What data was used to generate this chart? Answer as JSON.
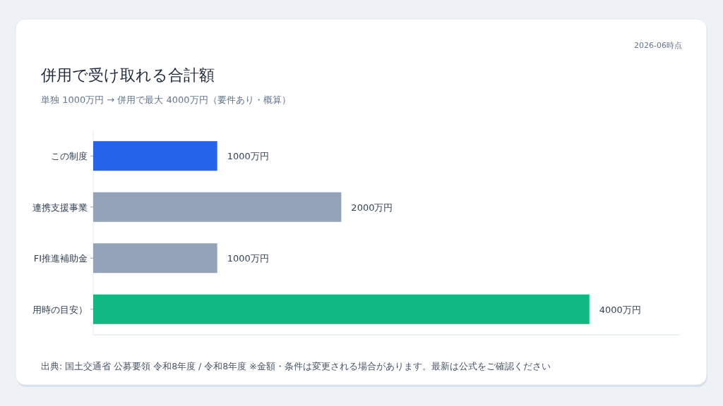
{
  "chart_data": {
    "type": "bar",
    "orientation": "horizontal",
    "title": "併用で受け取れる合計額",
    "subtitle": "単独 1000万円 → 併用で最大 4000万円（要件あり・概算）",
    "categories": [
      "この制度",
      "連携支援事業",
      "FI推進補助金",
      "用時の目安）"
    ],
    "values": [
      1000,
      2000,
      1000,
      4000
    ],
    "colors": [
      "#2563eb",
      "#94a3b8",
      "#94a3b8",
      "#10b981"
    ],
    "value_labels": [
      "1000万円",
      "2000万円",
      "1000万円",
      "4000万円"
    ],
    "xlim": [
      0,
      4730
    ],
    "tick_labels": "y",
    "annotations": [
      "2026-06時点",
      "出典: 国土交通省 公募要領 令和8年度 / 令和8年度 ※金額・条件は変更される場合があります。最新は公式をご確認ください"
    ]
  }
}
